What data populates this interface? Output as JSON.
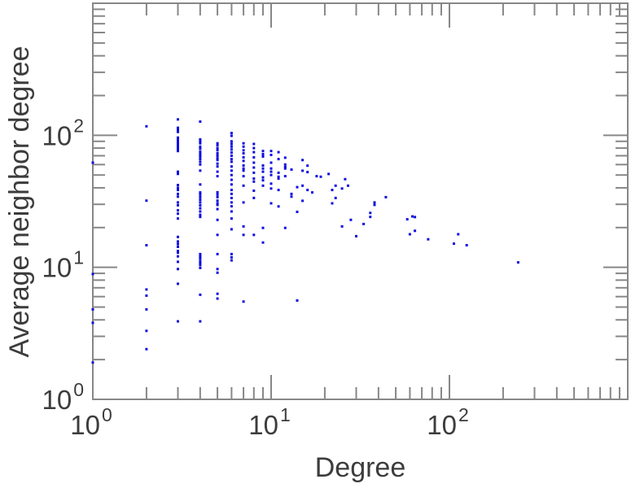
{
  "figure": {
    "background": "#ffffff",
    "frame_color": "#878787",
    "text_color": "#3c3c3c",
    "marker_color": "#0d0de0",
    "marker_size": 3
  },
  "chart_data": {
    "type": "scatter",
    "title": "",
    "xlabel": "Degree",
    "ylabel": "Average neighbor degree",
    "xscale": "log",
    "yscale": "log",
    "xlim": [
      1,
      1000
    ],
    "ylim": [
      1,
      1000
    ],
    "grid": false,
    "legend": null,
    "x_ticks": [
      {
        "value": 1,
        "mantissa": "10",
        "exponent": "0"
      },
      {
        "value": 10,
        "mantissa": "10",
        "exponent": "1"
      },
      {
        "value": 100,
        "mantissa": "10",
        "exponent": "2"
      }
    ],
    "y_ticks": [
      {
        "value": 1,
        "mantissa": "10",
        "exponent": "0"
      },
      {
        "value": 10,
        "mantissa": "10",
        "exponent": "1"
      },
      {
        "value": 100,
        "mantissa": "10",
        "exponent": "2"
      }
    ],
    "points": [
      [
        1,
        62
      ],
      [
        1,
        8.9
      ],
      [
        1,
        4.8
      ],
      [
        1,
        3.8
      ],
      [
        1,
        1.9
      ],
      [
        2,
        117
      ],
      [
        2,
        32
      ],
      [
        2,
        14.7
      ],
      [
        2,
        6.8
      ],
      [
        2,
        6.1
      ],
      [
        2,
        4.8
      ],
      [
        2,
        3.3
      ],
      [
        2,
        2.4
      ],
      [
        3,
        132
      ],
      [
        3,
        114
      ],
      [
        3,
        110
      ],
      [
        3,
        106
      ],
      [
        3,
        96
      ],
      [
        3,
        93
      ],
      [
        3,
        90
      ],
      [
        3,
        87
      ],
      [
        3,
        84
      ],
      [
        3,
        81
      ],
      [
        3,
        78
      ],
      [
        3,
        76
      ],
      [
        3,
        53
      ],
      [
        3,
        51
      ],
      [
        3,
        42
      ],
      [
        3,
        40
      ],
      [
        3,
        38.5
      ],
      [
        3,
        36
      ],
      [
        3,
        34.3
      ],
      [
        3,
        31
      ],
      [
        3,
        29.5
      ],
      [
        3,
        27
      ],
      [
        3,
        25.5
      ],
      [
        3,
        23.4
      ],
      [
        3,
        17
      ],
      [
        3,
        15.7
      ],
      [
        3,
        15
      ],
      [
        3,
        14.3
      ],
      [
        3,
        13.3
      ],
      [
        3,
        12.9
      ],
      [
        3,
        12.1
      ],
      [
        3,
        11
      ],
      [
        3,
        9.7
      ],
      [
        3,
        7.5
      ],
      [
        3,
        3.9
      ],
      [
        4,
        127
      ],
      [
        4,
        93
      ],
      [
        4,
        90
      ],
      [
        4,
        87
      ],
      [
        4,
        82
      ],
      [
        4,
        79
      ],
      [
        4,
        75
      ],
      [
        4,
        72
      ],
      [
        4,
        69
      ],
      [
        4,
        66
      ],
      [
        4,
        63
      ],
      [
        4,
        60
      ],
      [
        4,
        54
      ],
      [
        4,
        42.4
      ],
      [
        4,
        36.9
      ],
      [
        4,
        35.5
      ],
      [
        4,
        34
      ],
      [
        4,
        32.5
      ],
      [
        4,
        31
      ],
      [
        4,
        29.5
      ],
      [
        4,
        28
      ],
      [
        4,
        26.5
      ],
      [
        4,
        25
      ],
      [
        4,
        24.1
      ],
      [
        4,
        12.6
      ],
      [
        4,
        12.1
      ],
      [
        4,
        11.7
      ],
      [
        4,
        11.2
      ],
      [
        4,
        10.8
      ],
      [
        4,
        10.4
      ],
      [
        4,
        9.9
      ],
      [
        4,
        6.2
      ],
      [
        4,
        3.9
      ],
      [
        5,
        87
      ],
      [
        5,
        84
      ],
      [
        5,
        80
      ],
      [
        5,
        77
      ],
      [
        5,
        73
      ],
      [
        5,
        70
      ],
      [
        5,
        67
      ],
      [
        5,
        65
      ],
      [
        5,
        61
      ],
      [
        5,
        58
      ],
      [
        5,
        53
      ],
      [
        5,
        49
      ],
      [
        5,
        37
      ],
      [
        5,
        35.5
      ],
      [
        5,
        34
      ],
      [
        5,
        32
      ],
      [
        5,
        30.5
      ],
      [
        5,
        29.7
      ],
      [
        5,
        27.6
      ],
      [
        5,
        22.9
      ],
      [
        5,
        17.6
      ],
      [
        5,
        12.6
      ],
      [
        5,
        9.7
      ],
      [
        5,
        9.1
      ],
      [
        5,
        6.3
      ],
      [
        5,
        5.8
      ],
      [
        6,
        104
      ],
      [
        6,
        99
      ],
      [
        6,
        90
      ],
      [
        6,
        86
      ],
      [
        6,
        82
      ],
      [
        6,
        78
      ],
      [
        6,
        74
      ],
      [
        6,
        70
      ],
      [
        6,
        66
      ],
      [
        6,
        63
      ],
      [
        6,
        58
      ],
      [
        6,
        54
      ],
      [
        6,
        50
      ],
      [
        6,
        46
      ],
      [
        6,
        42.4
      ],
      [
        6,
        38.5
      ],
      [
        6,
        36
      ],
      [
        6,
        33.5
      ],
      [
        6,
        31
      ],
      [
        6,
        29
      ],
      [
        6,
        26.5
      ],
      [
        6,
        23.4
      ],
      [
        6,
        19.4
      ],
      [
        6,
        12.6
      ],
      [
        6,
        11.9
      ],
      [
        6,
        11.3
      ],
      [
        7,
        87
      ],
      [
        7,
        82
      ],
      [
        7,
        77
      ],
      [
        7,
        73
      ],
      [
        7,
        68
      ],
      [
        7,
        64
      ],
      [
        7,
        59
      ],
      [
        7,
        56
      ],
      [
        7,
        54
      ],
      [
        7,
        49
      ],
      [
        7,
        41.5
      ],
      [
        7,
        31
      ],
      [
        7,
        20.4
      ],
      [
        7,
        17.6
      ],
      [
        7,
        5.5
      ],
      [
        8,
        86
      ],
      [
        8,
        80
      ],
      [
        8,
        74.5
      ],
      [
        8,
        68
      ],
      [
        8,
        62
      ],
      [
        8,
        57
      ],
      [
        8,
        52
      ],
      [
        8,
        47
      ],
      [
        8,
        44.6
      ],
      [
        8,
        38
      ],
      [
        8,
        33.5
      ],
      [
        8,
        17.6
      ],
      [
        9,
        76
      ],
      [
        9,
        72
      ],
      [
        9,
        69
      ],
      [
        9,
        59
      ],
      [
        9,
        56
      ],
      [
        9,
        53
      ],
      [
        9,
        48
      ],
      [
        9,
        45.6
      ],
      [
        9,
        41.5
      ],
      [
        9,
        19.9
      ],
      [
        9,
        15.4
      ],
      [
        10,
        76
      ],
      [
        10,
        71
      ],
      [
        10,
        62
      ],
      [
        10,
        56
      ],
      [
        10,
        53
      ],
      [
        10,
        50
      ],
      [
        10,
        43
      ],
      [
        10,
        39.5
      ],
      [
        10,
        30.5
      ],
      [
        11,
        74.5
      ],
      [
        11,
        66
      ],
      [
        11,
        52
      ],
      [
        11,
        48.5
      ],
      [
        11,
        47
      ],
      [
        11,
        38.5
      ],
      [
        11,
        28.9
      ],
      [
        12,
        67.6
      ],
      [
        12,
        60
      ],
      [
        12,
        57.5
      ],
      [
        12,
        56
      ],
      [
        12,
        49
      ],
      [
        12,
        19.9
      ],
      [
        13,
        55
      ],
      [
        13,
        36
      ],
      [
        13,
        34.3
      ],
      [
        14,
        40.5
      ],
      [
        14,
        26.3
      ],
      [
        14,
        5.6
      ],
      [
        15,
        64.9
      ],
      [
        15,
        53.9
      ],
      [
        15,
        41.5
      ],
      [
        15,
        31.9
      ],
      [
        16,
        58.9
      ],
      [
        16,
        52.6
      ],
      [
        16,
        38.5
      ],
      [
        17,
        36.9
      ],
      [
        18,
        49
      ],
      [
        19,
        48.5
      ],
      [
        21,
        50.9
      ],
      [
        22,
        38.5
      ],
      [
        22,
        30.5
      ],
      [
        23,
        41.5
      ],
      [
        23,
        33.5
      ],
      [
        25,
        39.5
      ],
      [
        25,
        20.4
      ],
      [
        26,
        46.5
      ],
      [
        27,
        41.5
      ],
      [
        28,
        22.9
      ],
      [
        30,
        17.2
      ],
      [
        33,
        21.3
      ],
      [
        36,
        25.8
      ],
      [
        36,
        24.1
      ],
      [
        38,
        31
      ],
      [
        38,
        29.7
      ],
      [
        44,
        34
      ],
      [
        58,
        23.1
      ],
      [
        60,
        17.8
      ],
      [
        62,
        24.3
      ],
      [
        64,
        24
      ],
      [
        64,
        18.9
      ],
      [
        76,
        16.3
      ],
      [
        106,
        15.1
      ],
      [
        112,
        17.8
      ],
      [
        125,
        14.7
      ],
      [
        243,
        10.9
      ]
    ]
  }
}
